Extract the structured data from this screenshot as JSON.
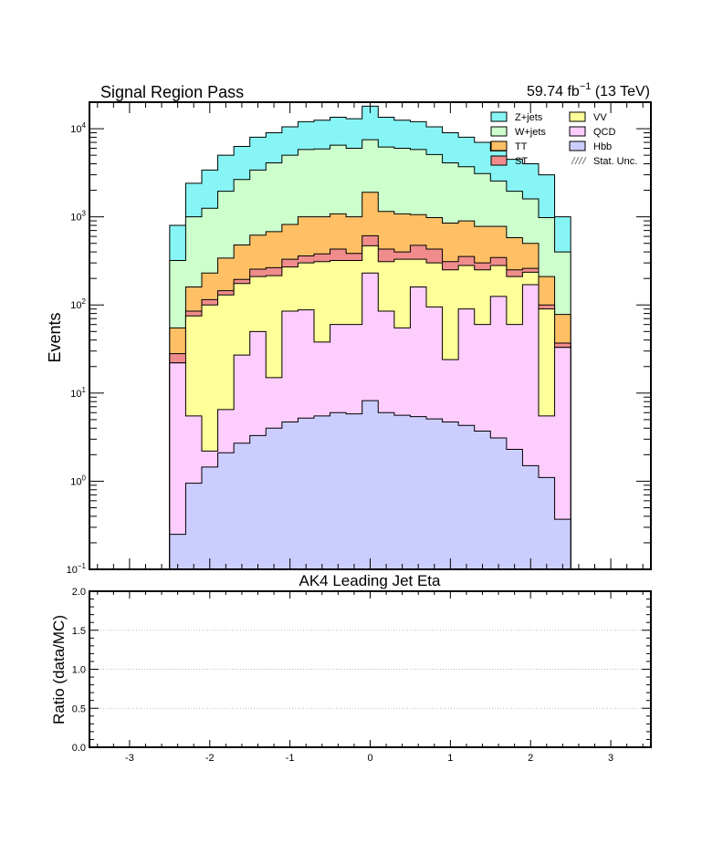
{
  "chart_data": {
    "type": "area",
    "title": "Signal Region Pass",
    "lumi_label": "59.74 fb$^{-1}$ (13 TeV)",
    "lumi_prefix": "59.74 fb",
    "lumi_exp": "−1",
    "lumi_suffix": " (13 TeV)",
    "xlabel": "AK4 Leading Jet Eta",
    "ylabel": "Events",
    "ratio_ylabel": "Ratio (data/MC)",
    "xlim": [
      -3.5,
      3.5
    ],
    "ylim": [
      0.1,
      20000
    ],
    "yscale": "log",
    "ratio_ylim": [
      0.0,
      2.0
    ],
    "x_ticks": [
      "-3",
      "-2",
      "-1",
      "0",
      "1",
      "2",
      "3"
    ],
    "x_tick_values": [
      -3,
      -2,
      -1,
      0,
      1,
      2,
      3
    ],
    "y_ticks": [
      {
        "value": 0.1,
        "base": "10",
        "exp": "−1"
      },
      {
        "value": 1,
        "base": "10",
        "exp": "0"
      },
      {
        "value": 10,
        "base": "10",
        "exp": "1"
      },
      {
        "value": 100,
        "base": "10",
        "exp": "2"
      },
      {
        "value": 1000,
        "base": "10",
        "exp": "3"
      },
      {
        "value": 10000,
        "base": "10",
        "exp": "4"
      }
    ],
    "ratio_y_ticks": [
      "0.0",
      "0.5",
      "1.0",
      "1.5",
      "2.0"
    ],
    "ratio_y_tick_values": [
      0.0,
      0.5,
      1.0,
      1.5,
      2.0
    ],
    "grid": "ratio panel dotted horizontal lines",
    "legend_position": "top-right",
    "bin_edges": [
      -2.5,
      -2.3,
      -2.1,
      -1.9,
      -1.7,
      -1.5,
      -1.3,
      -1.1,
      -0.9,
      -0.7,
      -0.5,
      -0.3,
      -0.1,
      0.1,
      0.3,
      0.5,
      0.7,
      0.9,
      1.1,
      1.3,
      1.5,
      1.7,
      1.9,
      2.1,
      2.3,
      2.5
    ],
    "stack_totals": [
      {
        "name": "Hbb",
        "values": [
          0.25,
          0.95,
          1.45,
          2.1,
          2.7,
          3.3,
          4.0,
          4.7,
          5.2,
          5.5,
          6.0,
          5.8,
          8.2,
          6.0,
          5.6,
          5.4,
          5.1,
          4.7,
          4.3,
          3.7,
          3.1,
          2.3,
          1.5,
          1.1,
          0.37
        ]
      },
      {
        "name": "QCD",
        "values": [
          22,
          5.5,
          2.2,
          6.5,
          27,
          50,
          15,
          85,
          88,
          38,
          60,
          60,
          230,
          85,
          55,
          160,
          95,
          24,
          90,
          60,
          125,
          60,
          170,
          5.5,
          33
        ]
      },
      {
        "name": "VV",
        "values": [
          22,
          75,
          100,
          130,
          175,
          210,
          215,
          270,
          300,
          310,
          320,
          320,
          470,
          310,
          330,
          330,
          300,
          250,
          280,
          250,
          280,
          210,
          235,
          90,
          33
        ]
      },
      {
        "name": "ST",
        "values": [
          28,
          85,
          115,
          145,
          195,
          255,
          265,
          330,
          360,
          380,
          430,
          385,
          610,
          430,
          400,
          475,
          430,
          310,
          355,
          300,
          345,
          250,
          260,
          100,
          37
        ]
      },
      {
        "name": "TT",
        "values": [
          55,
          160,
          230,
          340,
          480,
          620,
          680,
          820,
          1000,
          1000,
          1080,
          1000,
          1900,
          1150,
          1080,
          1060,
          980,
          850,
          900,
          780,
          780,
          580,
          500,
          210,
          78
        ]
      },
      {
        "name": "W+jets",
        "values": [
          320,
          1000,
          1250,
          1950,
          2650,
          3400,
          4100,
          5000,
          5800,
          5900,
          6500,
          6000,
          7500,
          6200,
          6000,
          5800,
          5100,
          4100,
          3700,
          3100,
          2550,
          1950,
          1600,
          980,
          400
        ]
      },
      {
        "name": "Z+jets",
        "values": [
          800,
          2400,
          3400,
          5000,
          6300,
          8000,
          9000,
          10500,
          12000,
          12500,
          13500,
          13000,
          18000,
          13500,
          12500,
          12000,
          10500,
          9000,
          8000,
          7000,
          5600,
          4500,
          4000,
          3000,
          1000
        ]
      }
    ],
    "series": [
      {
        "name": "Z+jets",
        "color": "#87f5f5"
      },
      {
        "name": "W+jets",
        "color": "#ccffcc"
      },
      {
        "name": "TT",
        "color": "#ffc065"
      },
      {
        "name": "ST",
        "color": "#f08c8c"
      },
      {
        "name": "VV",
        "color": "#ffff99"
      },
      {
        "name": "QCD",
        "color": "#fdcdfd"
      },
      {
        "name": "Hbb",
        "color": "#cccdff"
      }
    ],
    "legend": [
      {
        "name": "Z+jets",
        "color": "#87f5f5",
        "col": 0,
        "row": 0
      },
      {
        "name": "W+jets",
        "color": "#ccffcc",
        "col": 0,
        "row": 1
      },
      {
        "name": "TT",
        "color": "#ffc065",
        "col": 0,
        "row": 2
      },
      {
        "name": "ST",
        "color": "#f08c8c",
        "col": 0,
        "row": 3
      },
      {
        "name": "VV",
        "color": "#ffff99",
        "col": 1,
        "row": 0
      },
      {
        "name": "QCD",
        "color": "#fdcdfd",
        "col": 1,
        "row": 1
      },
      {
        "name": "Hbb",
        "color": "#cccdff",
        "col": 1,
        "row": 2
      },
      {
        "name": "Stat. Unc.",
        "color": "hatch",
        "col": 1,
        "row": 3
      }
    ]
  }
}
